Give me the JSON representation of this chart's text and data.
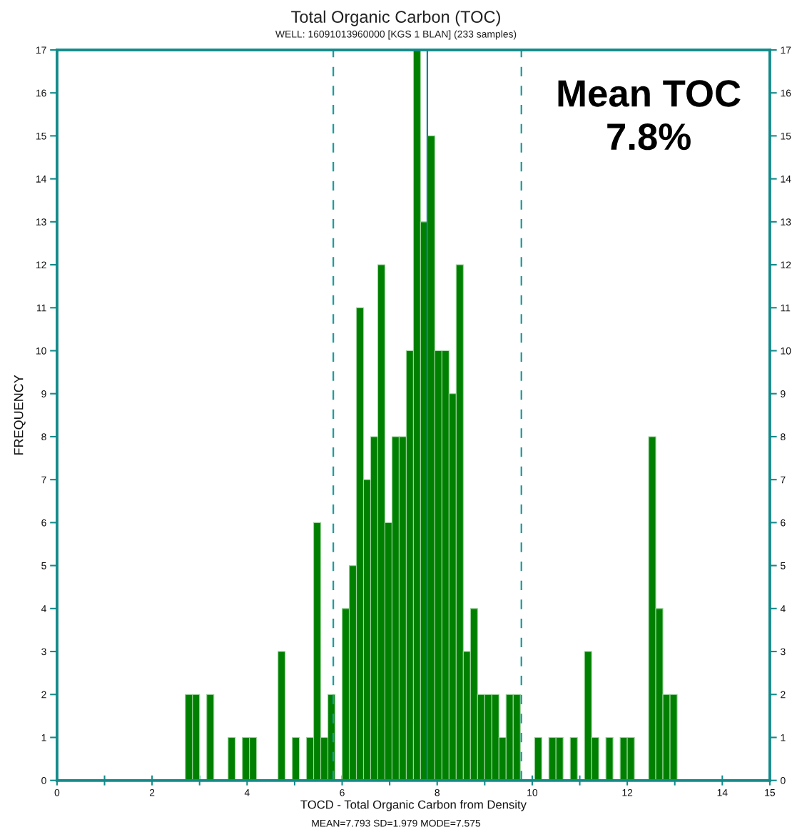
{
  "chart_data": {
    "type": "histogram",
    "title": "Total Organic Carbon (TOC)",
    "subtitle": "WELL: 16091013960000 [KGS 1 BLAN] (233 samples)",
    "xlabel": "TOCD - Total Organic Carbon from Density",
    "ylabel": "FREQUENCY",
    "annotations": [
      "MEAN=7.793 SD=1.979 MODE=7.575",
      "Mean TOC\n7.8%"
    ],
    "bins": [
      2.7,
      2.85,
      3.0,
      3.15,
      3.3,
      3.45,
      3.6,
      3.75,
      3.9,
      4.05,
      4.2,
      4.35,
      4.5,
      4.65,
      4.8,
      4.95,
      5.1,
      5.25,
      5.4,
      5.55,
      5.7,
      5.85,
      6.0,
      6.15,
      6.3,
      6.45,
      6.6,
      6.75,
      6.9,
      7.05,
      7.2,
      7.35,
      7.5,
      7.65,
      7.8,
      7.95,
      8.1,
      8.25,
      8.4,
      8.55,
      8.7,
      8.85,
      9.0,
      9.15,
      9.3,
      9.45,
      9.6,
      9.75,
      9.9,
      10.05,
      10.2,
      10.35,
      10.5,
      10.65,
      10.8,
      10.95,
      11.1,
      11.25,
      11.4,
      11.55,
      11.7,
      11.85,
      12.0,
      12.15,
      12.3,
      12.45,
      12.6,
      12.75,
      12.9,
      13.05
    ],
    "values": [
      2,
      2,
      0,
      2,
      0,
      0,
      1,
      0,
      1,
      1,
      0,
      0,
      0,
      3,
      0,
      1,
      0,
      1,
      6,
      1,
      2,
      0,
      4,
      5,
      11,
      7,
      8,
      12,
      6,
      8,
      8,
      10,
      17,
      13,
      15,
      10,
      10,
      9,
      12,
      3,
      4,
      2,
      2,
      2,
      1,
      2,
      2,
      0,
      0,
      1,
      0,
      1,
      1,
      0,
      1,
      0,
      3,
      1,
      0,
      1,
      0,
      1,
      1,
      0,
      0,
      8,
      4,
      2,
      2
    ],
    "color": "#008000",
    "xlim": [
      0,
      15
    ],
    "xticks": [
      0,
      {
        "value": 1,
        "label": null
      },
      2,
      {
        "value": 3,
        "label": null
      },
      4,
      {
        "value": 5,
        "label": null
      },
      6,
      {
        "value": 7,
        "label": null
      },
      8,
      {
        "value": 9,
        "label": null
      },
      10,
      {
        "value": 11,
        "label": null
      },
      12,
      {
        "value": 13,
        "label": null
      },
      14,
      15
    ],
    "ylim": [
      0,
      17
    ],
    "yticks": [
      0,
      1,
      2,
      3,
      4,
      5,
      6,
      7,
      8,
      9,
      10,
      11,
      12,
      13,
      14,
      15,
      16,
      17
    ],
    "y2lim": [
      0,
      17
    ],
    "y2ticks": [
      0,
      1,
      2,
      3,
      4,
      5,
      6,
      7,
      8,
      9,
      10,
      11,
      12,
      13,
      14,
      15,
      16,
      17
    ],
    "ref_lines": [
      {
        "axis": "x",
        "value": 5.814,
        "color": "#1a9a9a",
        "line_style": "dashed"
      },
      {
        "axis": "x",
        "value": 7.793,
        "color": "#1a7f9a",
        "line_style": "solid"
      },
      {
        "axis": "x",
        "value": 9.772,
        "color": "#1a9a9a",
        "line_style": "dashed"
      }
    ],
    "grid": false,
    "legend": false
  }
}
